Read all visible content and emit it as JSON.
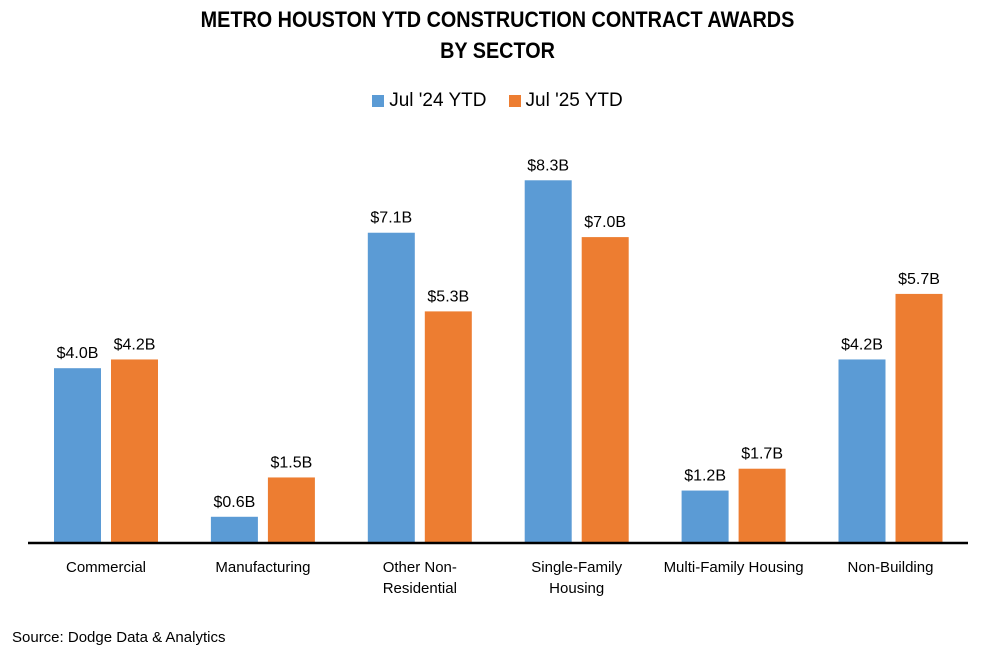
{
  "chart_data": {
    "type": "bar",
    "title": "METRO HOUSTON YTD CONSTRUCTION CONTRACT AWARDS BY SECTOR",
    "title_lines": [
      "METRO HOUSTON YTD CONSTRUCTION CONTRACT AWARDS",
      "BY SECTOR"
    ],
    "categories": [
      "Commercial",
      "Manufacturing",
      "Other Non-Residential",
      "Single-Family Housing",
      "Multi-Family Housing",
      "Non-Building"
    ],
    "category_lines": [
      [
        "Commercial"
      ],
      [
        "Manufacturing"
      ],
      [
        "Other Non-",
        "Residential"
      ],
      [
        "Single-Family",
        "Housing"
      ],
      [
        "Multi-Family Housing"
      ],
      [
        "Non-Building"
      ]
    ],
    "series": [
      {
        "name": "Jul '24 YTD",
        "color": "#5B9BD5",
        "values": [
          4.0,
          0.6,
          7.1,
          8.3,
          1.2,
          4.2
        ],
        "labels": [
          "$4.0B",
          "$0.6B",
          "$7.1B",
          "$8.3B",
          "$1.2B",
          "$4.2B"
        ]
      },
      {
        "name": "Jul '25 YTD",
        "color": "#ED7D31",
        "values": [
          4.2,
          1.5,
          5.3,
          7.0,
          1.7,
          5.7
        ],
        "labels": [
          "$4.2B",
          "$1.5B",
          "$5.3B",
          "$7.0B",
          "$1.7B",
          "$5.7B"
        ]
      }
    ],
    "xlabel": "",
    "ylabel": "",
    "units": "Billions USD",
    "ylim": [
      0,
      9
    ],
    "grid": false,
    "legend_position": "top-center"
  },
  "source": "Source: Dodge Data & Analytics"
}
